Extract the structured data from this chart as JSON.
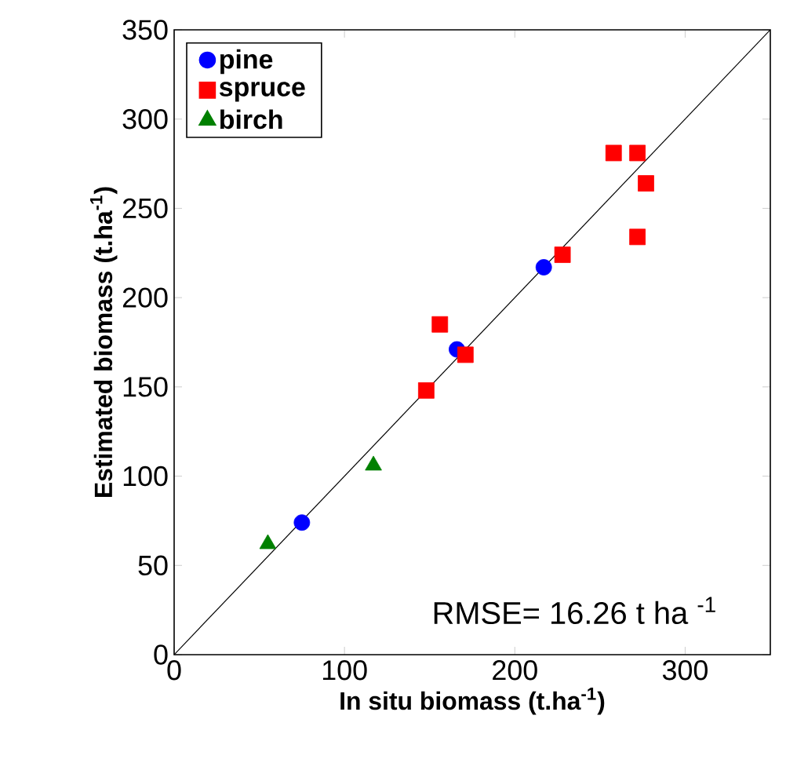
{
  "chart_data": {
    "type": "scatter",
    "xlabel": "In situ biomass (t.ha$^{-1}$)",
    "ylabel": "Estimated biomass (t.ha$^{-1}$)",
    "xlim": [
      0,
      350
    ],
    "ylim": [
      0,
      350
    ],
    "xticks": [
      0,
      100,
      200,
      300
    ],
    "yticks": [
      0,
      50,
      100,
      150,
      200,
      250,
      300,
      350
    ],
    "grid": false,
    "legend": "top left",
    "annotations": [
      "RMSE= 16.26 t ha $^{-1}$"
    ],
    "series": [
      {
        "name": "pine",
        "color": "#0000ff",
        "marker": "circle",
        "x": [
          75,
          166,
          217
        ],
        "values": [
          74,
          171,
          217
        ]
      },
      {
        "name": "spruce",
        "color": "#ff0000",
        "marker": "square",
        "x": [
          148,
          156,
          171,
          228,
          258,
          272,
          277,
          272
        ],
        "values": [
          148,
          185,
          168,
          224,
          281,
          281,
          264,
          234
        ]
      },
      {
        "name": "birch",
        "color": "#008000",
        "marker": "triangle",
        "x": [
          55,
          117
        ],
        "values": [
          62,
          106
        ]
      },
      {
        "type": "line",
        "color": "#000000",
        "marker": "none",
        "x": [
          0,
          350
        ],
        "values": [
          0,
          350
        ]
      }
    ]
  }
}
